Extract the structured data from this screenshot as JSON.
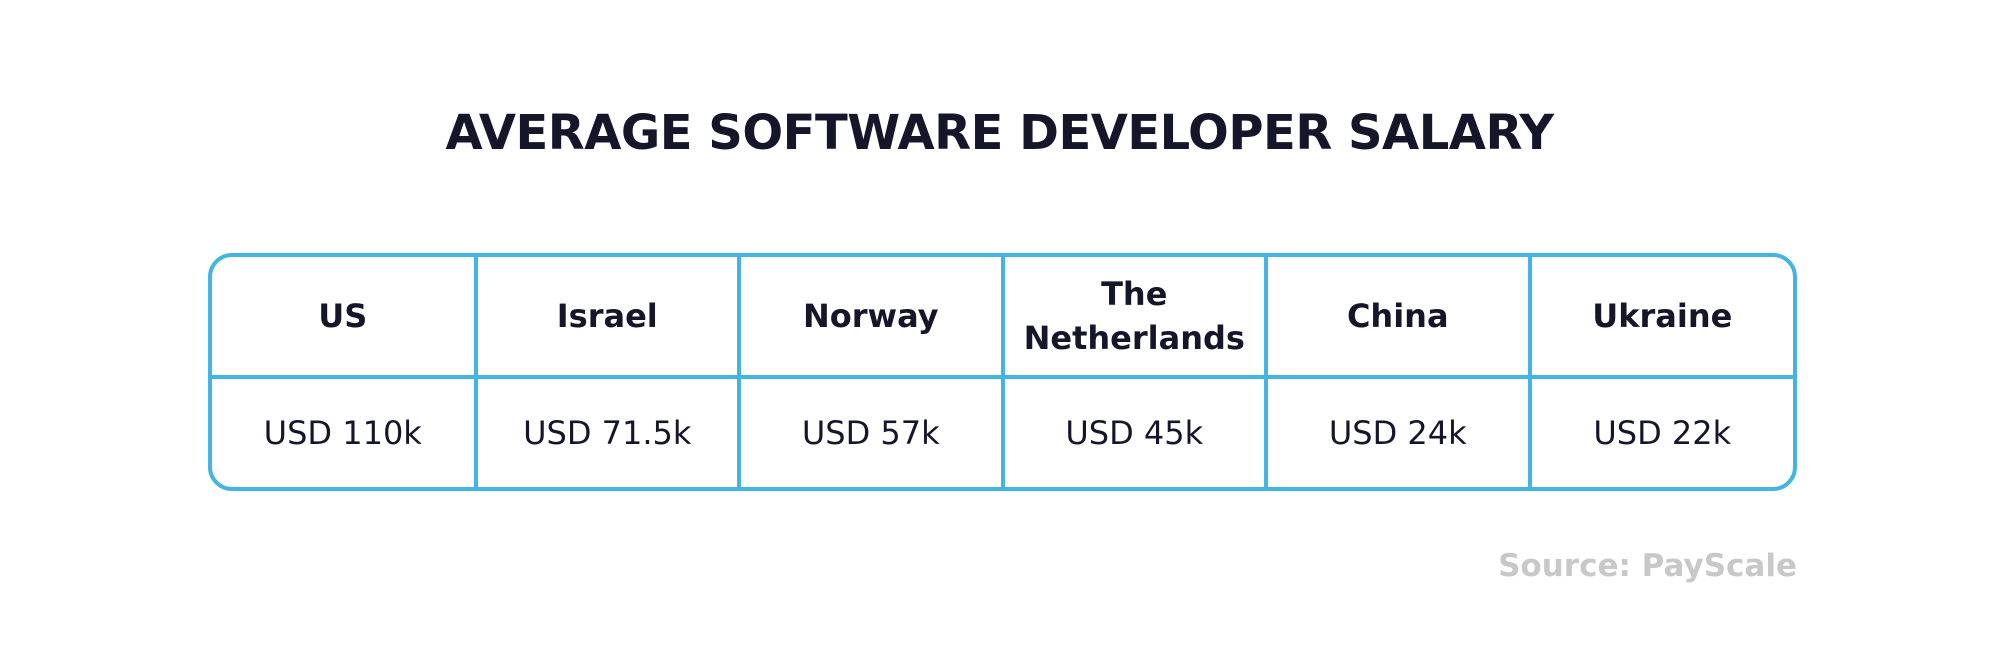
{
  "title": "AVERAGE SOFTWARE DEVELOPER SALARY",
  "chart_data": {
    "type": "table",
    "title": "AVERAGE SOFTWARE DEVELOPER SALARY",
    "columns": [
      "US",
      "Israel",
      "Norway",
      "The Netherlands",
      "China",
      "Ukraine"
    ],
    "rows": [
      [
        "USD 110k",
        "USD 71.5k",
        "USD 57k",
        "USD 45k",
        "USD 24k",
        "USD 22k"
      ]
    ],
    "values": [
      110,
      71.5,
      57,
      45,
      24,
      22
    ],
    "unit": "USD k"
  },
  "source": "Source: PayScale",
  "colors": {
    "border": "#43b4e4",
    "text": "#151629",
    "source_text": "#c8c8c8",
    "background": "#ffffff"
  }
}
